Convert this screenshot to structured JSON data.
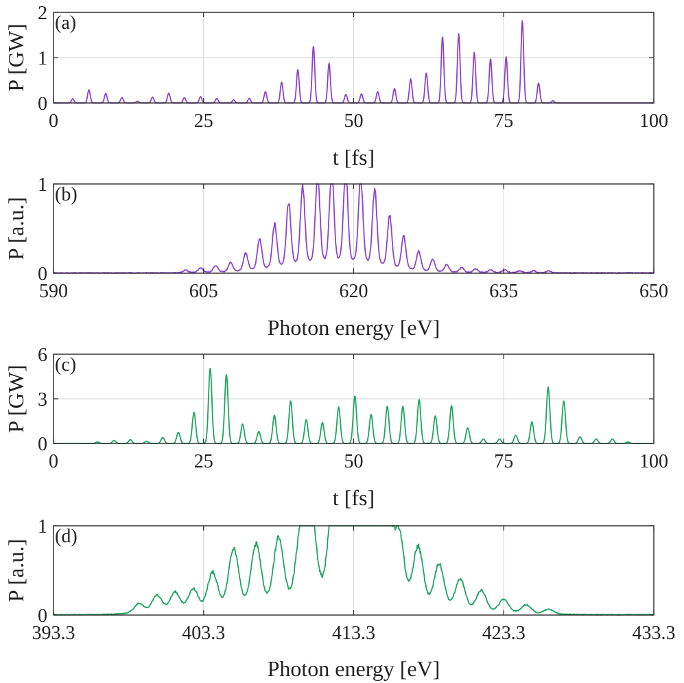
{
  "chart_data": [
    {
      "panel_label": "(a)",
      "type": "line",
      "xlabel": "t [fs]",
      "ylabel": "P [GW]",
      "xlim": [
        0,
        100
      ],
      "ylim": [
        0,
        2
      ],
      "xticks": [
        0,
        25,
        50,
        75,
        100
      ],
      "xtick_labels": [
        "0",
        "25",
        "50",
        "75",
        "100"
      ],
      "yticks": [
        0,
        1,
        2
      ],
      "ytick_labels": [
        "0",
        "1",
        "2"
      ],
      "grid": true,
      "color": "#8b45c9",
      "peak_width": 0.22,
      "peaks": [
        {
          "x": 3.2,
          "y": 0.09
        },
        {
          "x": 5.9,
          "y": 0.29
        },
        {
          "x": 8.7,
          "y": 0.21
        },
        {
          "x": 11.4,
          "y": 0.12
        },
        {
          "x": 14.0,
          "y": 0.04
        },
        {
          "x": 16.5,
          "y": 0.13
        },
        {
          "x": 19.2,
          "y": 0.22
        },
        {
          "x": 21.8,
          "y": 0.12
        },
        {
          "x": 24.5,
          "y": 0.14
        },
        {
          "x": 27.2,
          "y": 0.1
        },
        {
          "x": 30.0,
          "y": 0.07
        },
        {
          "x": 32.6,
          "y": 0.1
        },
        {
          "x": 35.3,
          "y": 0.25
        },
        {
          "x": 38.0,
          "y": 0.46
        },
        {
          "x": 40.7,
          "y": 0.74
        },
        {
          "x": 43.3,
          "y": 1.26
        },
        {
          "x": 45.9,
          "y": 0.88
        },
        {
          "x": 48.7,
          "y": 0.19
        },
        {
          "x": 51.3,
          "y": 0.2
        },
        {
          "x": 54.0,
          "y": 0.25
        },
        {
          "x": 56.8,
          "y": 0.32
        },
        {
          "x": 59.5,
          "y": 0.53
        },
        {
          "x": 62.1,
          "y": 0.66
        },
        {
          "x": 64.8,
          "y": 1.47
        },
        {
          "x": 67.5,
          "y": 1.53
        },
        {
          "x": 70.1,
          "y": 1.12
        },
        {
          "x": 72.8,
          "y": 0.98
        },
        {
          "x": 75.4,
          "y": 1.02
        },
        {
          "x": 78.1,
          "y": 1.82
        },
        {
          "x": 80.8,
          "y": 0.44
        },
        {
          "x": 83.2,
          "y": 0.05
        }
      ]
    },
    {
      "panel_label": "(b)",
      "type": "line",
      "xlabel": "Photon energy [eV]",
      "ylabel": "P [a.u.]",
      "xlim": [
        590,
        650
      ],
      "ylim": [
        0,
        1
      ],
      "xticks": [
        590,
        605,
        620,
        635,
        650
      ],
      "xtick_labels": [
        "590",
        "605",
        "620",
        "635",
        "650"
      ],
      "yticks": [
        0,
        1
      ],
      "ytick_labels": [
        "0",
        "1"
      ],
      "grid": true,
      "color": "#8b45c9",
      "peak_width": 0.22,
      "peaks": [
        {
          "x": 603.2,
          "y": 0.03
        },
        {
          "x": 604.7,
          "y": 0.05
        },
        {
          "x": 606.2,
          "y": 0.07
        },
        {
          "x": 607.7,
          "y": 0.1
        },
        {
          "x": 609.2,
          "y": 0.19
        },
        {
          "x": 610.6,
          "y": 0.33
        },
        {
          "x": 612.1,
          "y": 0.47
        },
        {
          "x": 613.5,
          "y": 0.68
        },
        {
          "x": 614.9,
          "y": 0.85
        },
        {
          "x": 616.4,
          "y": 0.95
        },
        {
          "x": 617.8,
          "y": 1.0
        },
        {
          "x": 619.2,
          "y": 0.99
        },
        {
          "x": 620.7,
          "y": 0.93
        },
        {
          "x": 622.1,
          "y": 0.82
        },
        {
          "x": 623.6,
          "y": 0.55
        },
        {
          "x": 625.0,
          "y": 0.35
        },
        {
          "x": 626.5,
          "y": 0.21
        },
        {
          "x": 627.9,
          "y": 0.13
        },
        {
          "x": 629.3,
          "y": 0.08
        },
        {
          "x": 630.8,
          "y": 0.05
        },
        {
          "x": 632.2,
          "y": 0.04
        },
        {
          "x": 633.7,
          "y": 0.03
        },
        {
          "x": 635.1,
          "y": 0.03
        },
        {
          "x": 636.6,
          "y": 0.02
        },
        {
          "x": 638.0,
          "y": 0.02
        },
        {
          "x": 639.5,
          "y": 0.02
        }
      ]
    },
    {
      "panel_label": "(c)",
      "type": "line",
      "xlabel": "t [fs]",
      "ylabel": "P [GW]",
      "xlim": [
        0,
        100
      ],
      "ylim": [
        0,
        6
      ],
      "xticks": [
        0,
        25,
        50,
        75,
        100
      ],
      "xtick_labels": [
        "0",
        "25",
        "50",
        "75",
        "100"
      ],
      "yticks": [
        0,
        3,
        6
      ],
      "ytick_labels": [
        "0",
        "3",
        "6"
      ],
      "grid": true,
      "color": "#1fa560",
      "peak_width": 0.28,
      "peaks": [
        {
          "x": 7.3,
          "y": 0.1
        },
        {
          "x": 10.1,
          "y": 0.2
        },
        {
          "x": 12.8,
          "y": 0.25
        },
        {
          "x": 15.5,
          "y": 0.15
        },
        {
          "x": 18.2,
          "y": 0.4
        },
        {
          "x": 20.8,
          "y": 0.75
        },
        {
          "x": 23.4,
          "y": 2.1
        },
        {
          "x": 26.1,
          "y": 5.05
        },
        {
          "x": 28.8,
          "y": 4.65
        },
        {
          "x": 31.5,
          "y": 1.3
        },
        {
          "x": 34.2,
          "y": 0.8
        },
        {
          "x": 36.8,
          "y": 1.9
        },
        {
          "x": 39.5,
          "y": 2.85
        },
        {
          "x": 42.1,
          "y": 1.6
        },
        {
          "x": 44.8,
          "y": 1.4
        },
        {
          "x": 47.5,
          "y": 2.45
        },
        {
          "x": 50.2,
          "y": 3.2
        },
        {
          "x": 52.9,
          "y": 1.95
        },
        {
          "x": 55.6,
          "y": 2.5
        },
        {
          "x": 58.2,
          "y": 2.5
        },
        {
          "x": 60.9,
          "y": 2.95
        },
        {
          "x": 63.6,
          "y": 1.85
        },
        {
          "x": 66.3,
          "y": 2.55
        },
        {
          "x": 69.0,
          "y": 1.05
        },
        {
          "x": 71.6,
          "y": 0.3
        },
        {
          "x": 74.3,
          "y": 0.3
        },
        {
          "x": 77.0,
          "y": 0.55
        },
        {
          "x": 79.7,
          "y": 1.45
        },
        {
          "x": 82.4,
          "y": 3.8
        },
        {
          "x": 85.0,
          "y": 2.85
        },
        {
          "x": 87.7,
          "y": 0.45
        },
        {
          "x": 90.4,
          "y": 0.3
        },
        {
          "x": 93.1,
          "y": 0.3
        },
        {
          "x": 95.7,
          "y": 0.1
        }
      ]
    },
    {
      "panel_label": "(d)",
      "type": "line",
      "xlabel": "Photon energy [eV]",
      "ylabel": "P [a.u.]",
      "xlim": [
        393.3,
        433.3
      ],
      "ylim": [
        0,
        1
      ],
      "xticks": [
        393.3,
        403.3,
        413.3,
        423.3,
        433.3
      ],
      "xtick_labels": [
        "393.3",
        "403.3",
        "413.3",
        "423.3",
        "433.3"
      ],
      "yticks": [
        0,
        1
      ],
      "ytick_labels": [
        "0",
        "1"
      ],
      "grid": true,
      "color": "#1fa560",
      "peak_width": 0.32,
      "peaks": [
        {
          "x": 399.0,
          "y": 0.1
        },
        {
          "x": 400.2,
          "y": 0.18
        },
        {
          "x": 401.4,
          "y": 0.2
        },
        {
          "x": 402.6,
          "y": 0.22
        },
        {
          "x": 403.9,
          "y": 0.38
        },
        {
          "x": 405.3,
          "y": 0.62
        },
        {
          "x": 406.8,
          "y": 0.65
        },
        {
          "x": 408.3,
          "y": 0.7
        },
        {
          "x": 409.8,
          "y": 0.78
        },
        {
          "x": 410.5,
          "y": 0.82
        },
        {
          "x": 411.9,
          "y": 0.88
        },
        {
          "x": 412.6,
          "y": 0.84
        },
        {
          "x": 413.3,
          "y": 0.9
        },
        {
          "x": 414.0,
          "y": 0.85
        },
        {
          "x": 414.8,
          "y": 1.0
        },
        {
          "x": 415.5,
          "y": 0.85
        },
        {
          "x": 416.3,
          "y": 0.7
        },
        {
          "x": 417.6,
          "y": 0.6
        },
        {
          "x": 419.0,
          "y": 0.46
        },
        {
          "x": 420.4,
          "y": 0.32
        },
        {
          "x": 421.8,
          "y": 0.22
        },
        {
          "x": 423.3,
          "y": 0.14
        },
        {
          "x": 424.8,
          "y": 0.09
        },
        {
          "x": 426.3,
          "y": 0.05
        }
      ]
    }
  ]
}
